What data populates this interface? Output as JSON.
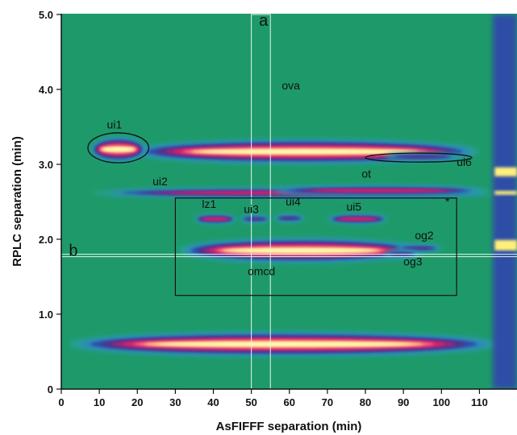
{
  "chart_data": {
    "type": "heatmap",
    "title": "",
    "xlabel": "AsFIFFF separation (min)",
    "ylabel": "RPLC separation (min)",
    "xlim": [
      0,
      115
    ],
    "ylim": [
      0,
      5.0
    ],
    "x_ticks": [
      0,
      10,
      20,
      30,
      40,
      50,
      60,
      70,
      80,
      90,
      100,
      110
    ],
    "x_tick_labels": [
      "0",
      "10",
      "20",
      "30",
      "40",
      "50",
      "60",
      "70",
      "80",
      "90",
      "100",
      "110"
    ],
    "y_ticks": [
      0,
      1,
      2,
      3,
      4,
      5
    ],
    "y_tick_labels": [
      "0",
      "1.0",
      "2.0",
      "3.0",
      "4.0",
      "5.0"
    ],
    "grid": false,
    "colors": {
      "background": "#1e9a6a",
      "colormap": [
        "#1e9a6a",
        "#2aa2a4",
        "#2d7fc4",
        "#2f4ea6",
        "#5a2f86",
        "#a0287a",
        "#e0206a",
        "#ff7a8a",
        "#fff07a",
        "#ffffcc"
      ]
    },
    "peaks": [
      {
        "label": "ova",
        "label_at": [
          58,
          4.0
        ],
        "x_range": [
          18,
          110
        ],
        "y_center": 3.17,
        "intensity": "high"
      },
      {
        "label": "ui1",
        "label_at": [
          12,
          3.48
        ],
        "x_range": [
          8,
          22
        ],
        "y_center": 3.2,
        "intensity": "high"
      },
      {
        "label": "ui2",
        "label_at": [
          24,
          2.72
        ],
        "x_range": [
          8,
          115
        ],
        "y_center": 2.62,
        "intensity": "medium"
      },
      {
        "label": "ot",
        "label_at": [
          79,
          2.82
        ],
        "x_range": [
          55,
          112
        ],
        "y_center": 2.65,
        "intensity": "medium"
      },
      {
        "label": "ui6",
        "label_at": [
          104,
          2.98
        ],
        "x_range": [
          85,
          105
        ],
        "y_center": 3.1,
        "intensity": "low"
      },
      {
        "label": "lz1",
        "label_at": [
          37,
          2.42
        ],
        "x_range": [
          35,
          46
        ],
        "y_center": 2.27,
        "intensity": "medium"
      },
      {
        "label": "ui3",
        "label_at": [
          48,
          2.35
        ],
        "x_range": [
          47,
          55
        ],
        "y_center": 2.27,
        "intensity": "low"
      },
      {
        "label": "ui4",
        "label_at": [
          59,
          2.45
        ],
        "x_range": [
          56,
          64
        ],
        "y_center": 2.28,
        "intensity": "low"
      },
      {
        "label": "ui5",
        "label_at": [
          75,
          2.38
        ],
        "x_range": [
          70,
          86
        ],
        "y_center": 2.27,
        "intensity": "medium"
      },
      {
        "label": "omcd",
        "label_at": [
          49,
          1.52
        ],
        "x_range": [
          31,
          95
        ],
        "y_center": 1.85,
        "intensity": "high"
      },
      {
        "label": "og2",
        "label_at": [
          93,
          2.0
        ],
        "x_range": [
          88,
          100
        ],
        "y_center": 1.88,
        "intensity": "low"
      },
      {
        "label": "og3",
        "label_at": [
          90,
          1.65
        ],
        "x_range": [
          85,
          94
        ],
        "y_center": 1.8,
        "intensity": "low"
      },
      {
        "label": "",
        "x_range": [
          2,
          115
        ],
        "y_center": 0.6,
        "intensity": "high"
      }
    ],
    "annotations": [
      {
        "text": "a",
        "at": [
          52,
          4.85
        ]
      },
      {
        "text": "b",
        "at": [
          2,
          1.78
        ]
      },
      {
        "text": "*",
        "at": [
          101,
          2.45
        ]
      }
    ],
    "guides": {
      "vertical_band_x": [
        50,
        55
      ],
      "horizontal_line_y": 1.8
    },
    "regions": {
      "rectangle": {
        "x": [
          30,
          104
        ],
        "y": [
          1.25,
          2.55
        ]
      },
      "ellipse_ui1": {
        "cx": 15,
        "cy": 3.22,
        "rx": 8,
        "ry": 0.2
      },
      "ellipse_ui6": {
        "cx": 94,
        "cy": 3.09,
        "rx": 14,
        "ry": 0.06
      }
    }
  }
}
